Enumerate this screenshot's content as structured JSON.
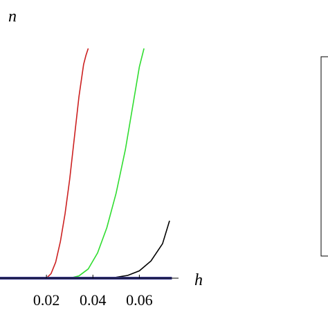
{
  "chart_data": {
    "type": "line",
    "xlabel": "h",
    "ylabel": "n",
    "x_ticks": [
      0.02,
      0.04,
      0.06
    ],
    "x_tick_labels": [
      "0.02",
      "0.04",
      "0.06"
    ],
    "xlim": [
      0.0,
      0.075
    ],
    "grid": false,
    "legend": "none",
    "series": [
      {
        "color": "#cc2020",
        "x": [
          0.0,
          0.02,
          0.022,
          0.024,
          0.026,
          0.028,
          0.03,
          0.032,
          0.034,
          0.036,
          0.037,
          0.038
        ],
        "y": [
          0,
          0.0,
          0.02,
          0.07,
          0.16,
          0.28,
          0.43,
          0.61,
          0.79,
          0.93,
          0.97,
          1.0
        ]
      },
      {
        "color": "#30dd30",
        "x": [
          0.0,
          0.03,
          0.034,
          0.038,
          0.042,
          0.046,
          0.05,
          0.054,
          0.058,
          0.06,
          0.062
        ],
        "y": [
          0,
          0.0,
          0.01,
          0.04,
          0.11,
          0.22,
          0.37,
          0.56,
          0.8,
          0.92,
          1.0
        ]
      },
      {
        "color": "#000000",
        "x": [
          0.0,
          0.045,
          0.05,
          0.055,
          0.06,
          0.065,
          0.07,
          0.073
        ],
        "y": [
          0,
          0.0,
          0.004,
          0.012,
          0.032,
          0.075,
          0.15,
          0.25
        ]
      },
      {
        "color": "#3a3a8c",
        "x": [
          0.0,
          0.074
        ],
        "y": [
          0,
          0
        ]
      }
    ]
  },
  "legend_box": {}
}
